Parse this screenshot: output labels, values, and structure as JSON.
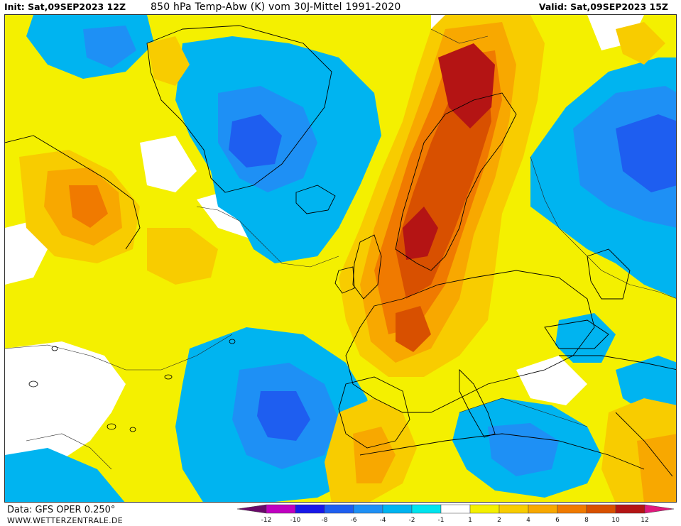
{
  "header": {
    "init": "Init: Sat,09SEP2023 12Z",
    "title": "850 hPa Temp-Abw (K) vom 30J-Mittel 1991-2020",
    "valid": "Valid: Sat,09SEP2023 15Z"
  },
  "footer": {
    "source": "Data: GFS OPER 0.250°",
    "site": "WWW.WETTERZENTRALE.DE"
  },
  "legend": {
    "labels": [
      "-12",
      "-10",
      "-8",
      "-6",
      "-4",
      "-2",
      "-1",
      "1",
      "2",
      "4",
      "6",
      "8",
      "10",
      "12"
    ],
    "colors": [
      "#6a0a6a",
      "#c000c0",
      "#1818e8",
      "#1e5ef0",
      "#1e90f5",
      "#00b4f0",
      "#00e4ee",
      "#ffffff",
      "#f4f000",
      "#f8cc00",
      "#f8a800",
      "#f07a00",
      "#d85000",
      "#b41414",
      "#e0187c"
    ]
  },
  "map": {
    "region": "Europe / North Atlantic",
    "colors": {
      "ocean_background": "#f4f000",
      "cold_2": "#00b4f0",
      "cold_4": "#1e90f5",
      "cold_6": "#1e5ef0",
      "warm_2": "#f8cc00",
      "warm_4": "#f8a800",
      "warm_6": "#f07a00",
      "warm_8": "#d85000",
      "warm_10": "#b41414",
      "neutral": "#ffffff"
    }
  }
}
